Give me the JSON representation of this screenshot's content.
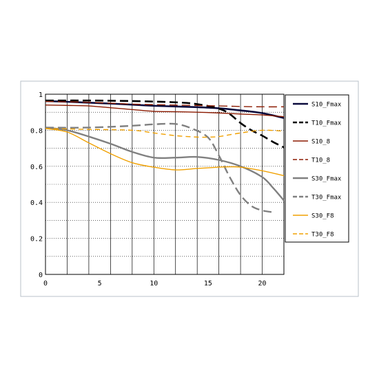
{
  "chart_data": {
    "type": "line",
    "title": "",
    "xlabel": "",
    "ylabel": "",
    "xlim": [
      0,
      22
    ],
    "ylim": [
      0,
      1
    ],
    "x_ticks": [
      0,
      5,
      10,
      15,
      20
    ],
    "y_ticks": [
      0,
      0.2,
      0.4,
      0.6,
      0.8,
      1
    ],
    "y_tick_labels": [
      "0",
      "0.2",
      "0.4",
      "0.6",
      "0.8",
      "1"
    ],
    "grid": true,
    "legend_position": "right",
    "series": [
      {
        "name": "S10_Fmax",
        "color": "#0a0a3c",
        "style": "solid",
        "points": [
          [
            0,
            0.962
          ],
          [
            2,
            0.958
          ],
          [
            4,
            0.953
          ],
          [
            6,
            0.948
          ],
          [
            8,
            0.942
          ],
          [
            10,
            0.936
          ],
          [
            12,
            0.932
          ],
          [
            14,
            0.928
          ],
          [
            16,
            0.922
          ],
          [
            18,
            0.91
          ],
          [
            20,
            0.895
          ],
          [
            22,
            0.868
          ]
        ]
      },
      {
        "name": "T10_Fmax",
        "color": "#000000",
        "style": "dashed",
        "points": [
          [
            0,
            0.965
          ],
          [
            4,
            0.965
          ],
          [
            8,
            0.962
          ],
          [
            12,
            0.955
          ],
          [
            14,
            0.945
          ],
          [
            16,
            0.92
          ],
          [
            17,
            0.89
          ],
          [
            18,
            0.84
          ],
          [
            19,
            0.8
          ],
          [
            20,
            0.77
          ],
          [
            21,
            0.735
          ],
          [
            22,
            0.705
          ]
        ]
      },
      {
        "name": "S10_8",
        "color": "#8b1a00",
        "style": "solid",
        "points": [
          [
            0,
            0.94
          ],
          [
            2,
            0.938
          ],
          [
            4,
            0.935
          ],
          [
            6,
            0.925
          ],
          [
            8,
            0.915
          ],
          [
            10,
            0.905
          ],
          [
            12,
            0.903
          ],
          [
            14,
            0.9
          ],
          [
            16,
            0.896
          ],
          [
            18,
            0.89
          ],
          [
            20,
            0.885
          ],
          [
            22,
            0.875
          ]
        ]
      },
      {
        "name": "T10_8",
        "color": "#8b1a00",
        "style": "dashed",
        "points": [
          [
            0,
            0.96
          ],
          [
            4,
            0.955
          ],
          [
            8,
            0.945
          ],
          [
            12,
            0.94
          ],
          [
            16,
            0.935
          ],
          [
            18,
            0.932
          ],
          [
            20,
            0.93
          ],
          [
            22,
            0.93
          ]
        ]
      },
      {
        "name": "S30_Fmax",
        "color": "#808080",
        "style": "solid",
        "points": [
          [
            0,
            0.815
          ],
          [
            2,
            0.8
          ],
          [
            4,
            0.765
          ],
          [
            6,
            0.725
          ],
          [
            8,
            0.68
          ],
          [
            10,
            0.648
          ],
          [
            12,
            0.648
          ],
          [
            14,
            0.652
          ],
          [
            16,
            0.635
          ],
          [
            18,
            0.6
          ],
          [
            20,
            0.54
          ],
          [
            21,
            0.48
          ],
          [
            22,
            0.41
          ]
        ]
      },
      {
        "name": "T30_Fmax",
        "color": "#808080",
        "style": "dashed",
        "points": [
          [
            0,
            0.815
          ],
          [
            4,
            0.815
          ],
          [
            8,
            0.825
          ],
          [
            10,
            0.833
          ],
          [
            12,
            0.835
          ],
          [
            13.5,
            0.81
          ],
          [
            15,
            0.76
          ],
          [
            16,
            0.66
          ],
          [
            17,
            0.54
          ],
          [
            18,
            0.44
          ],
          [
            19,
            0.38
          ],
          [
            20,
            0.355
          ],
          [
            21,
            0.345
          ]
        ]
      },
      {
        "name": "S30_F8",
        "color": "#f0a000",
        "style": "solid",
        "points": [
          [
            0,
            0.81
          ],
          [
            2,
            0.79
          ],
          [
            4,
            0.73
          ],
          [
            6,
            0.67
          ],
          [
            8,
            0.62
          ],
          [
            10,
            0.595
          ],
          [
            12,
            0.58
          ],
          [
            14,
            0.588
          ],
          [
            16,
            0.595
          ],
          [
            17,
            0.597
          ],
          [
            18,
            0.595
          ],
          [
            20,
            0.575
          ],
          [
            22,
            0.548
          ]
        ]
      },
      {
        "name": "T30_F8",
        "color": "#f0a000",
        "style": "dashed",
        "points": [
          [
            0,
            0.81
          ],
          [
            4,
            0.805
          ],
          [
            8,
            0.8
          ],
          [
            10,
            0.785
          ],
          [
            12,
            0.77
          ],
          [
            14,
            0.762
          ],
          [
            15,
            0.762
          ],
          [
            16,
            0.765
          ],
          [
            18,
            0.785
          ],
          [
            20,
            0.8
          ],
          [
            22,
            0.795
          ]
        ]
      }
    ]
  }
}
